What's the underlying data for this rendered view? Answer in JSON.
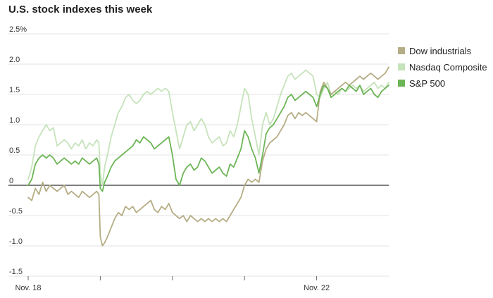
{
  "chart_data": {
    "type": "line",
    "title": "U.S. stock indexes this week",
    "xlabel": "",
    "ylabel": "",
    "x_tick_labels": [
      "Nov. 18",
      "",
      "",
      "",
      "Nov. 22"
    ],
    "y_tick_labels": [
      "2.5%",
      "2.0",
      "1.5",
      "1.0",
      "0.5",
      "0",
      "-0.5",
      "-1.0",
      "-1.5"
    ],
    "y_ticks": [
      2.5,
      2.0,
      1.5,
      1.0,
      0.5,
      0,
      -0.5,
      -1.0,
      -1.5
    ],
    "ylim": [
      -1.5,
      2.5
    ],
    "xlim": [
      0,
      5
    ],
    "grid": true,
    "legend_position": "right",
    "series": [
      {
        "name": "Dow industrials",
        "color": "#b5ad85",
        "values": [
          [
            0.0,
            -0.2
          ],
          [
            0.05,
            -0.25
          ],
          [
            0.1,
            -0.05
          ],
          [
            0.15,
            -0.15
          ],
          [
            0.2,
            0.05
          ],
          [
            0.25,
            -0.1
          ],
          [
            0.3,
            0.0
          ],
          [
            0.35,
            -0.05
          ],
          [
            0.4,
            -0.1
          ],
          [
            0.45,
            -0.05
          ],
          [
            0.5,
            0.0
          ],
          [
            0.55,
            -0.15
          ],
          [
            0.6,
            -0.1
          ],
          [
            0.65,
            -0.15
          ],
          [
            0.7,
            -0.2
          ],
          [
            0.75,
            -0.1
          ],
          [
            0.8,
            -0.15
          ],
          [
            0.85,
            -0.2
          ],
          [
            0.9,
            -0.15
          ],
          [
            0.95,
            -0.1
          ],
          [
            0.98,
            -0.15
          ],
          [
            1.0,
            -0.85
          ],
          [
            1.03,
            -1.0
          ],
          [
            1.06,
            -0.95
          ],
          [
            1.1,
            -0.85
          ],
          [
            1.15,
            -0.7
          ],
          [
            1.2,
            -0.55
          ],
          [
            1.25,
            -0.45
          ],
          [
            1.3,
            -0.5
          ],
          [
            1.35,
            -0.35
          ],
          [
            1.4,
            -0.4
          ],
          [
            1.45,
            -0.35
          ],
          [
            1.5,
            -0.45
          ],
          [
            1.55,
            -0.4
          ],
          [
            1.6,
            -0.35
          ],
          [
            1.65,
            -0.3
          ],
          [
            1.7,
            -0.25
          ],
          [
            1.75,
            -0.4
          ],
          [
            1.8,
            -0.45
          ],
          [
            1.85,
            -0.35
          ],
          [
            1.9,
            -0.4
          ],
          [
            1.95,
            -0.3
          ],
          [
            2.0,
            -0.45
          ],
          [
            2.05,
            -0.5
          ],
          [
            2.1,
            -0.55
          ],
          [
            2.15,
            -0.5
          ],
          [
            2.2,
            -0.6
          ],
          [
            2.25,
            -0.5
          ],
          [
            2.3,
            -0.55
          ],
          [
            2.35,
            -0.6
          ],
          [
            2.4,
            -0.55
          ],
          [
            2.45,
            -0.6
          ],
          [
            2.5,
            -0.55
          ],
          [
            2.55,
            -0.6
          ],
          [
            2.6,
            -0.55
          ],
          [
            2.65,
            -0.6
          ],
          [
            2.7,
            -0.55
          ],
          [
            2.75,
            -0.6
          ],
          [
            2.8,
            -0.5
          ],
          [
            2.85,
            -0.4
          ],
          [
            2.9,
            -0.3
          ],
          [
            2.95,
            -0.2
          ],
          [
            3.0,
            0.0
          ],
          [
            3.05,
            0.1
          ],
          [
            3.1,
            0.05
          ],
          [
            3.15,
            0.1
          ],
          [
            3.2,
            0.05
          ],
          [
            3.25,
            0.4
          ],
          [
            3.3,
            0.6
          ],
          [
            3.35,
            0.7
          ],
          [
            3.4,
            0.75
          ],
          [
            3.45,
            0.8
          ],
          [
            3.5,
            0.9
          ],
          [
            3.55,
            1.0
          ],
          [
            3.6,
            1.15
          ],
          [
            3.65,
            1.2
          ],
          [
            3.7,
            1.1
          ],
          [
            3.75,
            1.2
          ],
          [
            3.8,
            1.15
          ],
          [
            3.85,
            1.2
          ],
          [
            3.9,
            1.15
          ],
          [
            3.95,
            1.1
          ],
          [
            4.0,
            1.05
          ],
          [
            4.05,
            1.55
          ],
          [
            4.1,
            1.7
          ],
          [
            4.15,
            1.6
          ],
          [
            4.2,
            1.5
          ],
          [
            4.25,
            1.55
          ],
          [
            4.3,
            1.6
          ],
          [
            4.35,
            1.65
          ],
          [
            4.4,
            1.7
          ],
          [
            4.45,
            1.65
          ],
          [
            4.5,
            1.7
          ],
          [
            4.55,
            1.75
          ],
          [
            4.6,
            1.8
          ],
          [
            4.65,
            1.75
          ],
          [
            4.7,
            1.8
          ],
          [
            4.75,
            1.85
          ],
          [
            4.8,
            1.8
          ],
          [
            4.85,
            1.75
          ],
          [
            4.9,
            1.8
          ],
          [
            4.95,
            1.85
          ],
          [
            5.0,
            1.95
          ]
        ]
      },
      {
        "name": "Nasdaq Composite",
        "color": "#c6e3bb",
        "values": [
          [
            0.0,
            0.1
          ],
          [
            0.05,
            0.3
          ],
          [
            0.1,
            0.65
          ],
          [
            0.15,
            0.8
          ],
          [
            0.2,
            0.9
          ],
          [
            0.25,
            1.0
          ],
          [
            0.3,
            0.9
          ],
          [
            0.35,
            0.95
          ],
          [
            0.4,
            0.65
          ],
          [
            0.45,
            0.7
          ],
          [
            0.5,
            0.75
          ],
          [
            0.55,
            0.7
          ],
          [
            0.6,
            0.6
          ],
          [
            0.65,
            0.7
          ],
          [
            0.7,
            0.65
          ],
          [
            0.75,
            0.75
          ],
          [
            0.8,
            0.6
          ],
          [
            0.85,
            0.7
          ],
          [
            0.9,
            0.65
          ],
          [
            0.95,
            0.75
          ],
          [
            0.98,
            0.7
          ],
          [
            1.0,
            0.2
          ],
          [
            1.03,
            0.0
          ],
          [
            1.06,
            0.3
          ],
          [
            1.1,
            0.5
          ],
          [
            1.15,
            0.8
          ],
          [
            1.2,
            1.0
          ],
          [
            1.25,
            1.2
          ],
          [
            1.3,
            1.3
          ],
          [
            1.35,
            1.45
          ],
          [
            1.4,
            1.5
          ],
          [
            1.45,
            1.4
          ],
          [
            1.5,
            1.35
          ],
          [
            1.55,
            1.4
          ],
          [
            1.6,
            1.5
          ],
          [
            1.65,
            1.55
          ],
          [
            1.7,
            1.5
          ],
          [
            1.75,
            1.55
          ],
          [
            1.8,
            1.6
          ],
          [
            1.85,
            1.55
          ],
          [
            1.9,
            1.6
          ],
          [
            1.95,
            1.55
          ],
          [
            2.0,
            1.2
          ],
          [
            2.05,
            0.9
          ],
          [
            2.1,
            0.6
          ],
          [
            2.15,
            0.8
          ],
          [
            2.2,
            1.0
          ],
          [
            2.25,
            1.05
          ],
          [
            2.3,
            0.9
          ],
          [
            2.35,
            1.0
          ],
          [
            2.4,
            1.1
          ],
          [
            2.45,
            1.0
          ],
          [
            2.5,
            0.8
          ],
          [
            2.55,
            0.7
          ],
          [
            2.6,
            0.75
          ],
          [
            2.65,
            0.8
          ],
          [
            2.7,
            0.65
          ],
          [
            2.75,
            0.7
          ],
          [
            2.8,
            0.9
          ],
          [
            2.85,
            0.8
          ],
          [
            2.9,
            1.0
          ],
          [
            2.95,
            1.3
          ],
          [
            3.0,
            1.6
          ],
          [
            3.05,
            1.5
          ],
          [
            3.1,
            1.1
          ],
          [
            3.15,
            0.8
          ],
          [
            3.2,
            0.5
          ],
          [
            3.25,
            1.0
          ],
          [
            3.3,
            1.2
          ],
          [
            3.35,
            1.0
          ],
          [
            3.4,
            1.1
          ],
          [
            3.45,
            1.3
          ],
          [
            3.5,
            1.5
          ],
          [
            3.55,
            1.65
          ],
          [
            3.6,
            1.8
          ],
          [
            3.65,
            1.85
          ],
          [
            3.7,
            1.75
          ],
          [
            3.75,
            1.8
          ],
          [
            3.8,
            1.85
          ],
          [
            3.85,
            1.9
          ],
          [
            3.9,
            1.85
          ],
          [
            3.95,
            1.8
          ],
          [
            4.0,
            1.5
          ],
          [
            4.05,
            1.45
          ],
          [
            4.1,
            1.6
          ],
          [
            4.15,
            1.7
          ],
          [
            4.2,
            1.5
          ],
          [
            4.25,
            1.55
          ],
          [
            4.3,
            1.5
          ],
          [
            4.35,
            1.6
          ],
          [
            4.4,
            1.55
          ],
          [
            4.45,
            1.6
          ],
          [
            4.5,
            1.65
          ],
          [
            4.55,
            1.6
          ],
          [
            4.6,
            1.65
          ],
          [
            4.65,
            1.55
          ],
          [
            4.7,
            1.6
          ],
          [
            4.75,
            1.65
          ],
          [
            4.8,
            1.7
          ],
          [
            4.85,
            1.6
          ],
          [
            4.9,
            1.65
          ],
          [
            4.95,
            1.6
          ],
          [
            5.0,
            1.7
          ]
        ]
      },
      {
        "name": "S&P 500",
        "color": "#6cb556",
        "values": [
          [
            0.0,
            0.0
          ],
          [
            0.05,
            0.1
          ],
          [
            0.1,
            0.35
          ],
          [
            0.15,
            0.45
          ],
          [
            0.2,
            0.5
          ],
          [
            0.25,
            0.45
          ],
          [
            0.3,
            0.5
          ],
          [
            0.35,
            0.45
          ],
          [
            0.4,
            0.35
          ],
          [
            0.45,
            0.4
          ],
          [
            0.5,
            0.45
          ],
          [
            0.55,
            0.4
          ],
          [
            0.6,
            0.35
          ],
          [
            0.65,
            0.4
          ],
          [
            0.7,
            0.35
          ],
          [
            0.75,
            0.45
          ],
          [
            0.8,
            0.4
          ],
          [
            0.85,
            0.35
          ],
          [
            0.9,
            0.4
          ],
          [
            0.95,
            0.45
          ],
          [
            0.98,
            0.35
          ],
          [
            1.0,
            -0.05
          ],
          [
            1.03,
            -0.1
          ],
          [
            1.06,
            0.05
          ],
          [
            1.1,
            0.15
          ],
          [
            1.15,
            0.3
          ],
          [
            1.2,
            0.4
          ],
          [
            1.25,
            0.45
          ],
          [
            1.3,
            0.5
          ],
          [
            1.35,
            0.55
          ],
          [
            1.4,
            0.6
          ],
          [
            1.45,
            0.65
          ],
          [
            1.5,
            0.75
          ],
          [
            1.55,
            0.7
          ],
          [
            1.6,
            0.8
          ],
          [
            1.65,
            0.75
          ],
          [
            1.7,
            0.7
          ],
          [
            1.75,
            0.6
          ],
          [
            1.8,
            0.65
          ],
          [
            1.85,
            0.7
          ],
          [
            1.9,
            0.75
          ],
          [
            1.95,
            0.8
          ],
          [
            2.0,
            0.5
          ],
          [
            2.05,
            0.1
          ],
          [
            2.1,
            0.0
          ],
          [
            2.15,
            0.2
          ],
          [
            2.2,
            0.3
          ],
          [
            2.25,
            0.35
          ],
          [
            2.3,
            0.25
          ],
          [
            2.35,
            0.3
          ],
          [
            2.4,
            0.45
          ],
          [
            2.45,
            0.4
          ],
          [
            2.5,
            0.3
          ],
          [
            2.55,
            0.2
          ],
          [
            2.6,
            0.25
          ],
          [
            2.65,
            0.3
          ],
          [
            2.7,
            0.2
          ],
          [
            2.75,
            0.15
          ],
          [
            2.8,
            0.35
          ],
          [
            2.85,
            0.3
          ],
          [
            2.9,
            0.45
          ],
          [
            2.95,
            0.6
          ],
          [
            3.0,
            0.9
          ],
          [
            3.05,
            0.8
          ],
          [
            3.1,
            0.6
          ],
          [
            3.15,
            0.45
          ],
          [
            3.2,
            0.2
          ],
          [
            3.25,
            0.5
          ],
          [
            3.3,
            0.85
          ],
          [
            3.35,
            0.95
          ],
          [
            3.4,
            1.0
          ],
          [
            3.45,
            1.1
          ],
          [
            3.5,
            1.2
          ],
          [
            3.55,
            1.3
          ],
          [
            3.6,
            1.45
          ],
          [
            3.65,
            1.5
          ],
          [
            3.7,
            1.4
          ],
          [
            3.75,
            1.45
          ],
          [
            3.8,
            1.5
          ],
          [
            3.85,
            1.55
          ],
          [
            3.9,
            1.5
          ],
          [
            3.95,
            1.45
          ],
          [
            4.0,
            1.3
          ],
          [
            4.05,
            1.5
          ],
          [
            4.1,
            1.65
          ],
          [
            4.15,
            1.6
          ],
          [
            4.2,
            1.45
          ],
          [
            4.25,
            1.5
          ],
          [
            4.3,
            1.55
          ],
          [
            4.35,
            1.6
          ],
          [
            4.4,
            1.55
          ],
          [
            4.45,
            1.65
          ],
          [
            4.5,
            1.6
          ],
          [
            4.55,
            1.55
          ],
          [
            4.6,
            1.65
          ],
          [
            4.65,
            1.5
          ],
          [
            4.7,
            1.55
          ],
          [
            4.75,
            1.6
          ],
          [
            4.8,
            1.5
          ],
          [
            4.85,
            1.45
          ],
          [
            4.9,
            1.55
          ],
          [
            4.95,
            1.6
          ],
          [
            5.0,
            1.65
          ]
        ]
      }
    ]
  }
}
